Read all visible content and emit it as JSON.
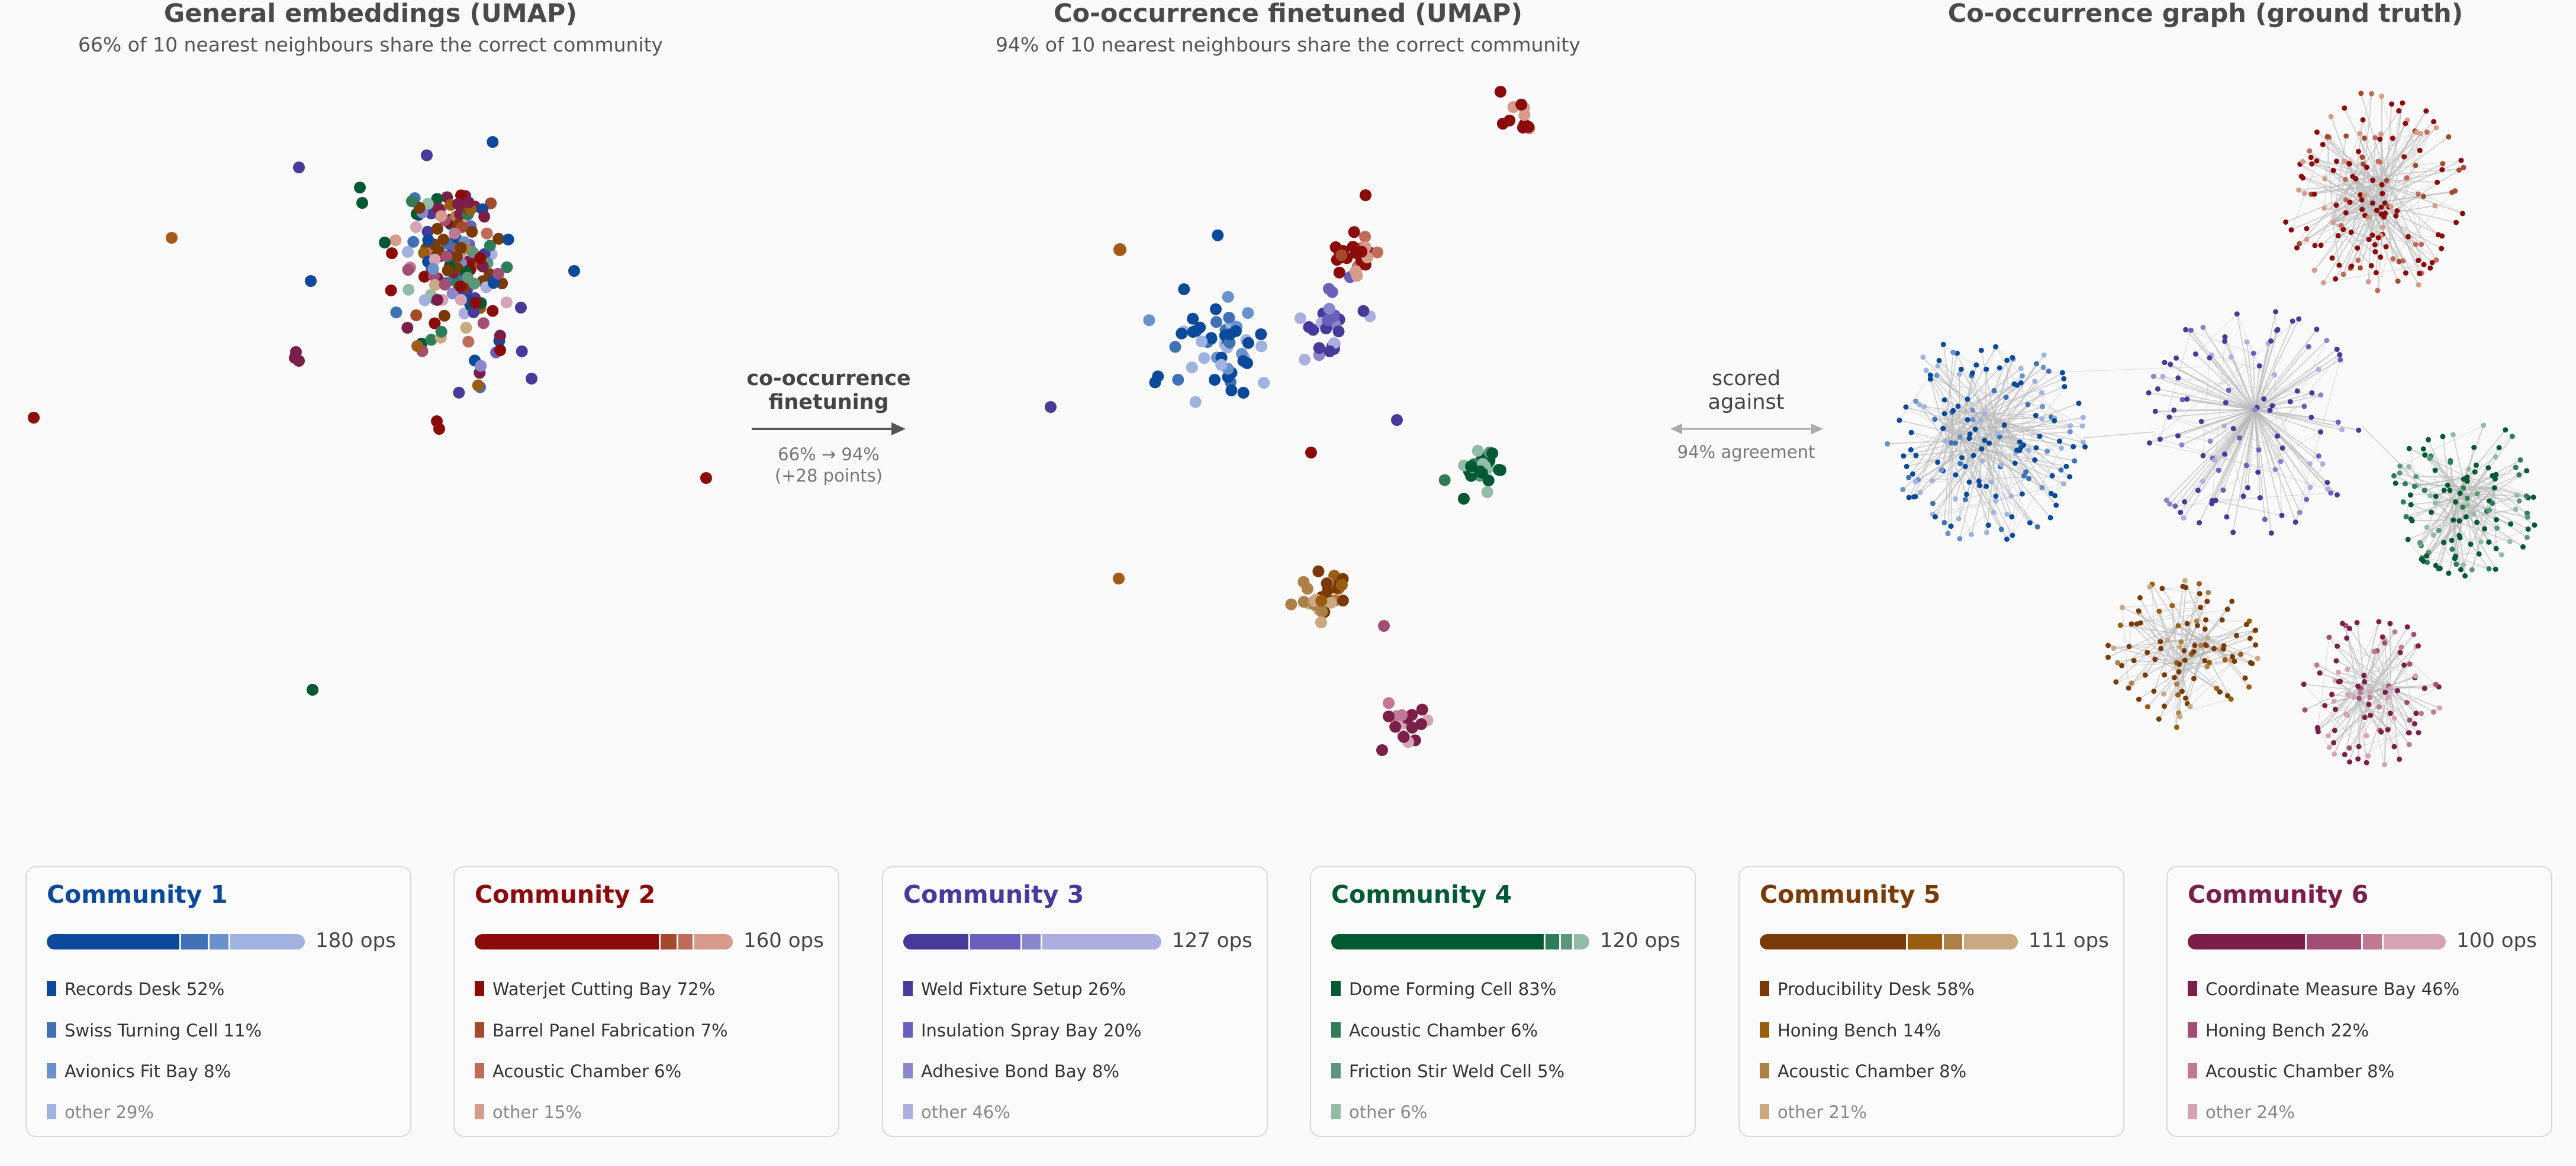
{
  "panels": [
    {
      "title": "General embeddings (UMAP)",
      "subtitle": "66% of 10 nearest neighbours share the correct community"
    },
    {
      "title": "Co-occurrence finetuned (UMAP)",
      "subtitle": "94% of 10 nearest neighbours share the correct community"
    },
    {
      "title": "Co-occurrence graph (ground truth)",
      "subtitle": ""
    }
  ],
  "transitions": {
    "finetune": {
      "line1": "co-occurrence",
      "line2": "finetuning",
      "line3": "66% → 94%",
      "line4": "(+28 points)"
    },
    "scored": {
      "line1": "scored",
      "line2": "against",
      "line3": "94% agreement"
    }
  },
  "colors": {
    "c1": [
      "#0b4a9a",
      "#3f72b5",
      "#6b91cc",
      "#9fb2e0"
    ],
    "c2": [
      "#8b0a0a",
      "#a34a2c",
      "#c06a5a",
      "#d89a8a"
    ],
    "c3": [
      "#463a9a",
      "#6a5fbc",
      "#8a86cc",
      "#abaedf"
    ],
    "c4": [
      "#035a32",
      "#2e7d58",
      "#5c977c",
      "#93bca6"
    ],
    "c5": [
      "#7a3a05",
      "#9a5c0e",
      "#ad8146",
      "#c9a882"
    ],
    "c6": [
      "#7b1e4a",
      "#a24d72",
      "#c07992",
      "#d6a3b3"
    ]
  },
  "communities": [
    {
      "title": "Community 1",
      "color_key": "c1",
      "ops": "180 ops",
      "parts": [
        52,
        11,
        8,
        29
      ],
      "items": [
        {
          "label": "Records Desk  52%"
        },
        {
          "label": "Swiss Turning Cell  11%"
        },
        {
          "label": "Avionics Fit Bay  8%"
        },
        {
          "label": "other  29%"
        }
      ]
    },
    {
      "title": "Community 2",
      "color_key": "c2",
      "ops": "160 ops",
      "parts": [
        72,
        7,
        6,
        15
      ],
      "items": [
        {
          "label": "Waterjet Cutting Bay  72%"
        },
        {
          "label": "Barrel Panel Fabrication  7%"
        },
        {
          "label": "Acoustic Chamber  6%"
        },
        {
          "label": "other  15%"
        }
      ]
    },
    {
      "title": "Community 3",
      "color_key": "c3",
      "ops": "127 ops",
      "parts": [
        26,
        20,
        8,
        46
      ],
      "items": [
        {
          "label": "Weld Fixture Setup  26%"
        },
        {
          "label": "Insulation Spray Bay  20%"
        },
        {
          "label": "Adhesive Bond Bay  8%"
        },
        {
          "label": "other  46%"
        }
      ]
    },
    {
      "title": "Community 4",
      "color_key": "c4",
      "ops": "120 ops",
      "parts": [
        83,
        6,
        5,
        6
      ],
      "items": [
        {
          "label": "Dome Forming Cell  83%"
        },
        {
          "label": "Acoustic Chamber  6%"
        },
        {
          "label": "Friction Stir Weld Cell  5%"
        },
        {
          "label": "other  6%"
        }
      ]
    },
    {
      "title": "Community 5",
      "color_key": "c5",
      "ops": "111 ops",
      "parts": [
        58,
        14,
        8,
        21
      ],
      "items": [
        {
          "label": "Producibility Desk  58%"
        },
        {
          "label": "Honing Bench  14%"
        },
        {
          "label": "Acoustic Chamber  8%"
        },
        {
          "label": "other  21%"
        }
      ]
    },
    {
      "title": "Community 6",
      "color_key": "c6",
      "ops": "100 ops",
      "parts": [
        46,
        22,
        8,
        24
      ],
      "items": [
        {
          "label": "Coordinate Measure Bay  46%"
        },
        {
          "label": "Honing Bench  22%"
        },
        {
          "label": "Acoustic Chamber  8%"
        },
        {
          "label": "other  24%"
        }
      ]
    }
  ],
  "chart_data": [
    {
      "type": "scatter",
      "title": "General embeddings (UMAP)",
      "subtitle": "66% of 10 nearest neighbours share the correct community",
      "note": "All six communities overlap in one central cluster with few scattered outliers; no axes shown.",
      "xlabel": "",
      "ylabel": "",
      "grid": false,
      "clusters": [
        {
          "community": "Community 1",
          "x": 0.0,
          "y": 0.0,
          "spread": 0.2
        },
        {
          "community": "Community 2",
          "x": 0.0,
          "y": 0.0,
          "spread": 0.2
        },
        {
          "community": "Community 3",
          "x": 0.0,
          "y": 0.0,
          "spread": 0.2
        },
        {
          "community": "Community 4",
          "x": 0.0,
          "y": 0.0,
          "spread": 0.2
        },
        {
          "community": "Community 5",
          "x": 0.0,
          "y": 0.0,
          "spread": 0.2
        },
        {
          "community": "Community 6",
          "x": 0.0,
          "y": 0.0,
          "spread": 0.2
        }
      ],
      "neighbour_agreement_pct": 66
    },
    {
      "type": "scatter",
      "title": "Co-occurrence finetuned (UMAP)",
      "subtitle": "94% of 10 nearest neighbours share the correct community",
      "note": "Communities separate into distinct tight clusters; no axes shown.",
      "xlabel": "",
      "ylabel": "",
      "grid": false,
      "clusters": [
        {
          "community": "Community 1",
          "x": -1.2,
          "y": 0.3,
          "spread": 0.15
        },
        {
          "community": "Community 2",
          "x": 0.1,
          "y": 1.2,
          "spread": 0.08
        },
        {
          "community": "Community 3",
          "x": 0.1,
          "y": 0.6,
          "spread": 0.06
        },
        {
          "community": "Community 4",
          "x": 1.0,
          "y": -0.2,
          "spread": 0.05
        },
        {
          "community": "Community 5",
          "x": 0.2,
          "y": -1.0,
          "spread": 0.07
        },
        {
          "community": "Community 6",
          "x": 0.5,
          "y": -1.6,
          "spread": 0.06
        }
      ],
      "neighbour_agreement_pct": 94
    },
    {
      "type": "network",
      "title": "Co-occurrence graph (ground truth)",
      "note": "Six dense node clusters (one per community) with hub-and-spoke edges; few inter-cluster edges.",
      "agreement_pct": 94
    }
  ]
}
